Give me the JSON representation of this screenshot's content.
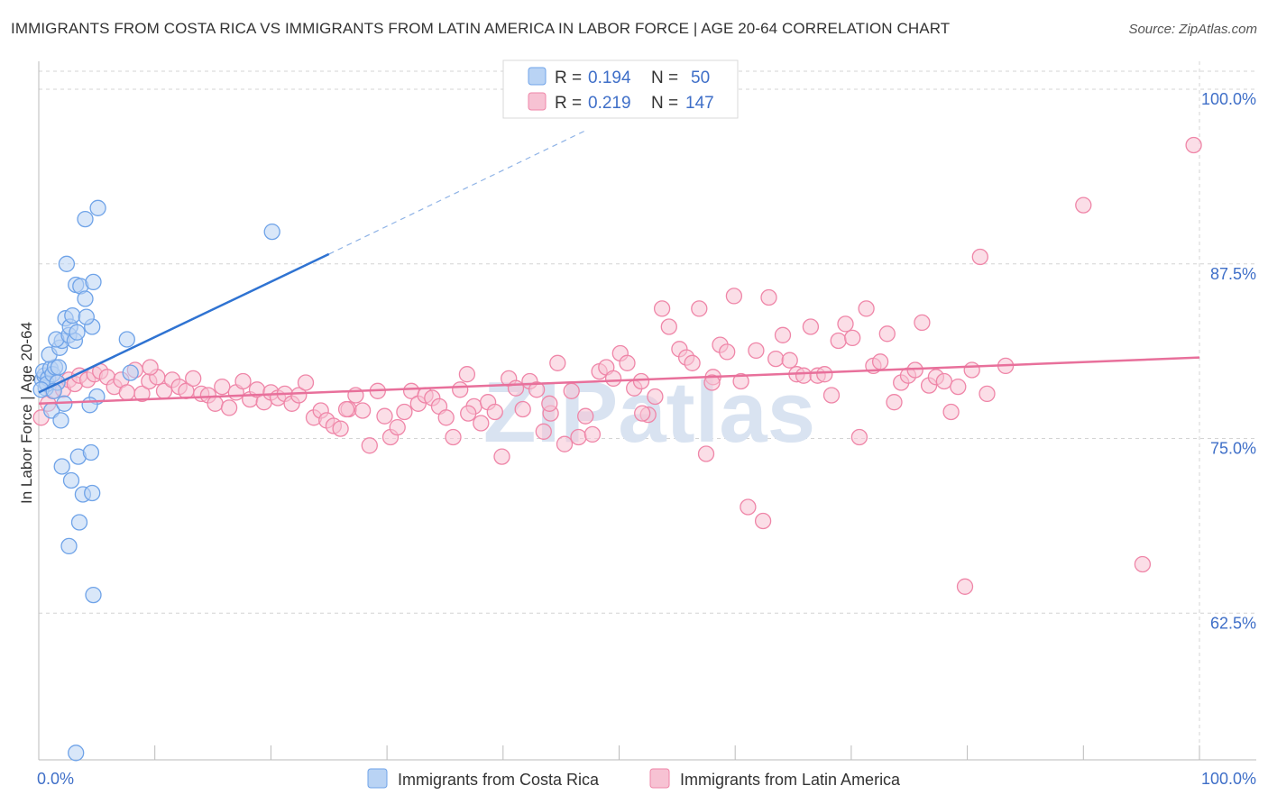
{
  "title": "IMMIGRANTS FROM COSTA RICA VS IMMIGRANTS FROM LATIN AMERICA IN LABOR FORCE | AGE 20-64 CORRELATION CHART",
  "source": "Source: ZipAtlas.com",
  "watermark": "ZIPatlas",
  "chart_data": {
    "type": "scatter",
    "ylabel": "In Labor Force | Age 20-64",
    "xlim": [
      0,
      100
    ],
    "ylim": [
      52,
      102
    ],
    "x_tick_labels": [
      {
        "value": 0,
        "label": "0.0%"
      },
      {
        "value": 100,
        "label": "100.0%"
      }
    ],
    "y_ticks": [
      {
        "value": 100,
        "label": "100.0%"
      },
      {
        "value": 87.5,
        "label": "87.5%"
      },
      {
        "value": 75,
        "label": "75.0%"
      },
      {
        "value": 62.5,
        "label": "62.5%"
      }
    ],
    "legend": {
      "placement": "top-center",
      "rows": [
        {
          "r_label": "R =",
          "r_value": "0.194",
          "n_label": "N =",
          "n_value": "50",
          "color": "#9fc3ef"
        },
        {
          "r_label": "R =",
          "r_value": "0.219",
          "n_label": "N =",
          "n_value": "147",
          "color": "#f5b6c9"
        }
      ]
    },
    "series": [
      {
        "name": "Immigrants from Costa Rica",
        "color": "#6fa3e8",
        "fill": "#b9d3f4",
        "trend": {
          "x0": 0,
          "y0": 78.3,
          "x1": 25,
          "y1": 88.2,
          "dash_to_x": 47,
          "dash_to_y": 97.0
        },
        "points": [
          [
            0.3,
            79.2
          ],
          [
            0.5,
            79.5
          ],
          [
            0.4,
            79.8
          ],
          [
            0.6,
            78.6
          ],
          [
            0.8,
            79.3
          ],
          [
            1.0,
            80.0
          ],
          [
            0.7,
            78.9
          ],
          [
            1.2,
            79.6
          ],
          [
            1.4,
            80.1
          ],
          [
            1.6,
            79.0
          ],
          [
            0.9,
            81.0
          ],
          [
            1.8,
            81.5
          ],
          [
            2.0,
            82.0
          ],
          [
            1.5,
            82.1
          ],
          [
            2.6,
            82.4
          ],
          [
            3.1,
            82.0
          ],
          [
            2.3,
            83.6
          ],
          [
            2.7,
            83.0
          ],
          [
            2.9,
            83.8
          ],
          [
            3.3,
            82.6
          ],
          [
            2.4,
            87.5
          ],
          [
            3.2,
            86.0
          ],
          [
            3.6,
            85.9
          ],
          [
            4.0,
            85.0
          ],
          [
            4.7,
            86.2
          ],
          [
            4.6,
            83.0
          ],
          [
            4.1,
            83.7
          ],
          [
            5.0,
            78.0
          ],
          [
            7.9,
            79.7
          ],
          [
            7.6,
            82.1
          ],
          [
            1.1,
            77.0
          ],
          [
            1.9,
            76.3
          ],
          [
            2.2,
            77.5
          ],
          [
            4.4,
            77.4
          ],
          [
            1.7,
            80.1
          ],
          [
            2.0,
            73.0
          ],
          [
            2.8,
            72.0
          ],
          [
            3.4,
            73.7
          ],
          [
            4.5,
            74.0
          ],
          [
            3.8,
            71.0
          ],
          [
            4.6,
            71.1
          ],
          [
            3.5,
            69.0
          ],
          [
            2.6,
            67.3
          ],
          [
            4.7,
            63.8
          ],
          [
            4.0,
            90.7
          ],
          [
            5.1,
            91.5
          ],
          [
            20.1,
            89.8
          ],
          [
            3.2,
            52.5
          ],
          [
            0.2,
            78.5
          ],
          [
            1.3,
            78.4
          ]
        ]
      },
      {
        "name": "Immigrants from Latin America",
        "color": "#ef86a8",
        "fill": "#f7c2d3",
        "trend": {
          "x0": 0,
          "y0": 77.5,
          "x1": 100,
          "y1": 80.8
        },
        "points": [
          [
            0.2,
            76.5
          ],
          [
            0.8,
            77.5
          ],
          [
            1.2,
            78.4
          ],
          [
            1.6,
            79.0
          ],
          [
            2.1,
            78.5
          ],
          [
            2.6,
            79.2
          ],
          [
            3.1,
            78.9
          ],
          [
            3.5,
            79.5
          ],
          [
            4.2,
            79.2
          ],
          [
            4.8,
            79.6
          ],
          [
            5.3,
            79.8
          ],
          [
            5.9,
            79.4
          ],
          [
            6.5,
            78.7
          ],
          [
            7.1,
            79.2
          ],
          [
            7.6,
            78.3
          ],
          [
            8.3,
            79.9
          ],
          [
            8.9,
            78.2
          ],
          [
            9.5,
            79.1
          ],
          [
            10.2,
            79.4
          ],
          [
            10.8,
            78.4
          ],
          [
            11.5,
            79.2
          ],
          [
            12.1,
            78.7
          ],
          [
            12.7,
            78.4
          ],
          [
            13.3,
            79.3
          ],
          [
            14.0,
            78.2
          ],
          [
            14.6,
            78.1
          ],
          [
            15.2,
            77.5
          ],
          [
            15.8,
            78.7
          ],
          [
            16.4,
            77.2
          ],
          [
            17.0,
            78.3
          ],
          [
            17.6,
            79.1
          ],
          [
            18.2,
            77.8
          ],
          [
            18.8,
            78.5
          ],
          [
            19.4,
            77.6
          ],
          [
            20.0,
            78.3
          ],
          [
            20.6,
            77.9
          ],
          [
            21.2,
            78.2
          ],
          [
            21.8,
            77.5
          ],
          [
            22.4,
            78.1
          ],
          [
            23.0,
            79.0
          ],
          [
            23.7,
            76.5
          ],
          [
            24.3,
            77.0
          ],
          [
            24.8,
            76.3
          ],
          [
            25.4,
            75.9
          ],
          [
            26.0,
            75.7
          ],
          [
            26.7,
            77.1
          ],
          [
            27.3,
            78.1
          ],
          [
            27.9,
            77.0
          ],
          [
            28.5,
            74.5
          ],
          [
            29.2,
            78.4
          ],
          [
            29.8,
            76.6
          ],
          [
            30.3,
            75.1
          ],
          [
            30.9,
            75.8
          ],
          [
            31.5,
            76.9
          ],
          [
            32.1,
            78.4
          ],
          [
            32.7,
            77.5
          ],
          [
            33.3,
            78.1
          ],
          [
            33.9,
            77.9
          ],
          [
            34.5,
            77.3
          ],
          [
            35.1,
            76.5
          ],
          [
            35.7,
            75.1
          ],
          [
            36.3,
            78.5
          ],
          [
            36.9,
            79.6
          ],
          [
            37.5,
            77.3
          ],
          [
            38.1,
            76.1
          ],
          [
            38.7,
            77.6
          ],
          [
            39.3,
            76.9
          ],
          [
            39.9,
            73.7
          ],
          [
            40.5,
            79.3
          ],
          [
            41.1,
            78.6
          ],
          [
            41.7,
            77.1
          ],
          [
            42.3,
            79.1
          ],
          [
            42.9,
            78.5
          ],
          [
            43.5,
            75.5
          ],
          [
            44.1,
            76.8
          ],
          [
            44.7,
            80.4
          ],
          [
            45.3,
            74.6
          ],
          [
            45.9,
            78.4
          ],
          [
            46.5,
            75.1
          ],
          [
            47.1,
            76.6
          ],
          [
            47.7,
            75.3
          ],
          [
            48.3,
            79.8
          ],
          [
            48.9,
            80.1
          ],
          [
            49.5,
            79.3
          ],
          [
            50.1,
            81.1
          ],
          [
            50.7,
            80.4
          ],
          [
            51.3,
            78.6
          ],
          [
            51.9,
            79.1
          ],
          [
            52.5,
            76.7
          ],
          [
            53.1,
            78.0
          ],
          [
            53.7,
            84.3
          ],
          [
            54.3,
            83.0
          ],
          [
            55.2,
            81.4
          ],
          [
            55.8,
            80.8
          ],
          [
            56.3,
            80.4
          ],
          [
            56.9,
            84.3
          ],
          [
            57.5,
            73.9
          ],
          [
            58.1,
            79.4
          ],
          [
            58.7,
            81.7
          ],
          [
            59.3,
            81.2
          ],
          [
            59.9,
            85.2
          ],
          [
            60.5,
            79.1
          ],
          [
            61.1,
            70.1
          ],
          [
            61.8,
            81.3
          ],
          [
            62.4,
            69.1
          ],
          [
            62.9,
            85.1
          ],
          [
            63.5,
            80.7
          ],
          [
            64.1,
            82.4
          ],
          [
            64.7,
            80.6
          ],
          [
            65.3,
            79.6
          ],
          [
            65.9,
            79.5
          ],
          [
            66.5,
            83.0
          ],
          [
            67.1,
            79.5
          ],
          [
            67.7,
            79.6
          ],
          [
            68.3,
            78.1
          ],
          [
            68.9,
            82.0
          ],
          [
            69.5,
            83.2
          ],
          [
            70.1,
            82.2
          ],
          [
            70.7,
            75.1
          ],
          [
            71.3,
            84.3
          ],
          [
            71.9,
            80.2
          ],
          [
            72.5,
            80.5
          ],
          [
            73.1,
            82.5
          ],
          [
            73.7,
            77.6
          ],
          [
            74.3,
            79.0
          ],
          [
            74.9,
            79.5
          ],
          [
            75.5,
            79.9
          ],
          [
            76.1,
            83.3
          ],
          [
            76.7,
            78.8
          ],
          [
            77.3,
            79.4
          ],
          [
            78.0,
            79.1
          ],
          [
            78.6,
            76.9
          ],
          [
            79.2,
            78.7
          ],
          [
            79.8,
            64.4
          ],
          [
            80.4,
            79.9
          ],
          [
            81.1,
            88.0
          ],
          [
            81.7,
            78.2
          ],
          [
            83.3,
            80.2
          ],
          [
            90.0,
            91.7
          ],
          [
            95.1,
            66.0
          ],
          [
            99.5,
            96.0
          ],
          [
            9.6,
            80.1
          ],
          [
            26.5,
            77.1
          ],
          [
            37.0,
            76.8
          ],
          [
            44.0,
            77.5
          ],
          [
            52.0,
            76.8
          ],
          [
            58.0,
            79.0
          ]
        ]
      }
    ]
  }
}
